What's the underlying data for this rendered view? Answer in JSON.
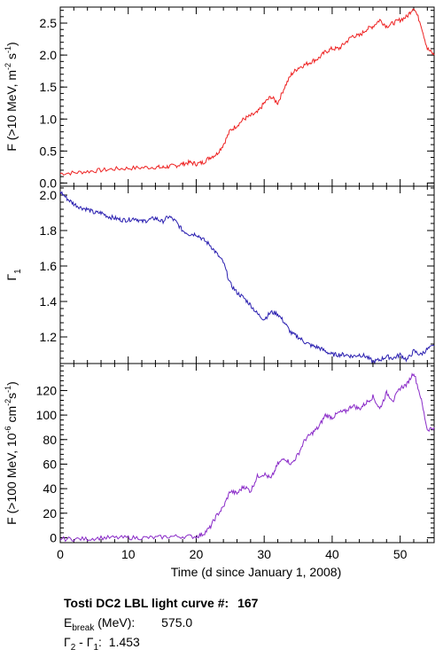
{
  "chart_data": [
    {
      "type": "line",
      "panel": "top",
      "color": "#ee2222",
      "ylabel_html": "F (>10 MeV, m<tspan dy='-6' font-size='9'>-2</tspan><tspan dy='6'> s</tspan><tspan dy='-6' font-size='9'>-1</tspan><tspan dy='6'>)</tspan>",
      "ylabel": "F (>10 MeV, m-2 s-1)",
      "ylim": [
        -0.05,
        2.75
      ],
      "yticks": [
        0.0,
        0.5,
        1.0,
        1.5,
        2.0,
        2.5
      ],
      "yticklabels": [
        "0.0",
        "0.5",
        "1.0",
        "1.5",
        "2.0",
        "2.5"
      ],
      "series": [
        {
          "x": [
            0,
            2,
            4,
            6,
            8,
            10,
            12,
            14,
            15,
            16,
            17,
            18,
            19,
            20,
            21,
            22,
            23,
            24,
            25,
            26,
            27,
            28,
            29,
            30,
            31,
            32,
            33,
            34,
            35,
            36,
            37,
            38,
            39,
            40,
            41,
            42,
            43,
            44,
            45,
            46,
            47,
            48,
            49,
            50,
            51,
            52,
            53,
            54,
            55
          ],
          "y": [
            0.15,
            0.16,
            0.18,
            0.2,
            0.22,
            0.23,
            0.24,
            0.25,
            0.24,
            0.26,
            0.27,
            0.3,
            0.32,
            0.3,
            0.32,
            0.4,
            0.45,
            0.6,
            0.82,
            0.9,
            1.0,
            1.05,
            1.1,
            1.25,
            1.35,
            1.25,
            1.5,
            1.7,
            1.8,
            1.85,
            1.9,
            1.95,
            2.05,
            2.1,
            2.1,
            2.2,
            2.3,
            2.3,
            2.4,
            2.45,
            2.55,
            2.45,
            2.5,
            2.55,
            2.6,
            2.75,
            2.5,
            2.1,
            2.0
          ]
        }
      ]
    },
    {
      "type": "line",
      "panel": "middle",
      "color": "#2a1fb0",
      "ylabel_html": "Γ<tspan dy='5' font-size='10'>1</tspan>",
      "ylabel": "Γ1",
      "ylim": [
        1.05,
        2.05
      ],
      "yticks": [
        1.2,
        1.4,
        1.6,
        1.8,
        2.0
      ],
      "yticklabels": [
        "1.2",
        "1.4",
        "1.6",
        "1.8",
        "2.0"
      ],
      "series": [
        {
          "x": [
            0,
            1,
            2,
            3,
            4,
            5,
            6,
            7,
            8,
            9,
            10,
            11,
            12,
            13,
            14,
            15,
            16,
            17,
            18,
            19,
            20,
            21,
            22,
            23,
            24,
            25,
            26,
            27,
            28,
            29,
            30,
            31,
            32,
            33,
            34,
            35,
            36,
            37,
            38,
            39,
            40,
            41,
            42,
            43,
            44,
            45,
            46,
            47,
            48,
            49,
            50,
            51,
            52,
            53,
            54,
            55
          ],
          "y": [
            2.02,
            1.98,
            1.95,
            1.93,
            1.92,
            1.9,
            1.9,
            1.88,
            1.87,
            1.86,
            1.86,
            1.87,
            1.85,
            1.86,
            1.87,
            1.85,
            1.88,
            1.85,
            1.8,
            1.78,
            1.78,
            1.75,
            1.72,
            1.67,
            1.62,
            1.5,
            1.45,
            1.42,
            1.38,
            1.33,
            1.3,
            1.34,
            1.33,
            1.28,
            1.22,
            1.2,
            1.17,
            1.15,
            1.14,
            1.12,
            1.1,
            1.1,
            1.1,
            1.09,
            1.1,
            1.09,
            1.06,
            1.07,
            1.09,
            1.08,
            1.1,
            1.07,
            1.12,
            1.1,
            1.13,
            1.15
          ]
        }
      ]
    },
    {
      "type": "line",
      "panel": "bottom",
      "color": "#8a2bc8",
      "ylabel_html": "F (>100 MeV, 10<tspan dy='-6' font-size='9'>-6</tspan><tspan dy='6'> cm</tspan><tspan dy='-6' font-size='9'>-2</tspan><tspan dy='6'>s</tspan><tspan dy='-6' font-size='9'>-1</tspan><tspan dy='6'>)</tspan>",
      "ylabel": "F (>100 MeV, 10-6 cm-2s-1)",
      "ylim": [
        -4,
        142
      ],
      "yticks": [
        0,
        20,
        40,
        60,
        80,
        100,
        120
      ],
      "yticklabels": [
        "0",
        "20",
        "40",
        "60",
        "80",
        "100",
        "120"
      ],
      "series": [
        {
          "x": [
            0,
            2,
            4,
            6,
            8,
            10,
            12,
            14,
            16,
            18,
            20,
            21,
            22,
            23,
            24,
            25,
            26,
            27,
            28,
            29,
            30,
            31,
            32,
            33,
            34,
            35,
            36,
            37,
            38,
            39,
            40,
            41,
            42,
            43,
            44,
            45,
            46,
            47,
            48,
            49,
            50,
            51,
            52,
            53,
            54,
            55
          ],
          "y": [
            -1,
            -1,
            -1,
            0,
            0,
            0,
            0,
            0,
            1,
            1,
            1,
            3,
            8,
            18,
            25,
            38,
            36,
            42,
            38,
            50,
            52,
            48,
            60,
            65,
            60,
            68,
            80,
            85,
            90,
            100,
            98,
            102,
            103,
            108,
            105,
            110,
            115,
            105,
            118,
            112,
            122,
            125,
            135,
            115,
            88,
            90
          ]
        }
      ]
    }
  ],
  "xaxis": {
    "label": "Time (d since January 1, 2008)",
    "xlim": [
      0,
      55
    ],
    "xticks": [
      0,
      10,
      20,
      30,
      40,
      50
    ],
    "xticklabels": [
      "0",
      "10",
      "20",
      "30",
      "40",
      "50"
    ]
  },
  "info": {
    "title": "Tosti DC2 LBL light curve #:",
    "curve_number": "167",
    "ebreak_label_main": "E",
    "ebreak_label_sub": "break",
    "ebreak_label_rest": " (MeV):",
    "ebreak_value": "575.0",
    "gamma_label_a": "Γ",
    "gamma_label_a_sub": "2",
    "gamma_label_mid": " - Γ",
    "gamma_label_b_sub": "1",
    "gamma_label_colon": ":",
    "gamma_value": "1.453"
  }
}
